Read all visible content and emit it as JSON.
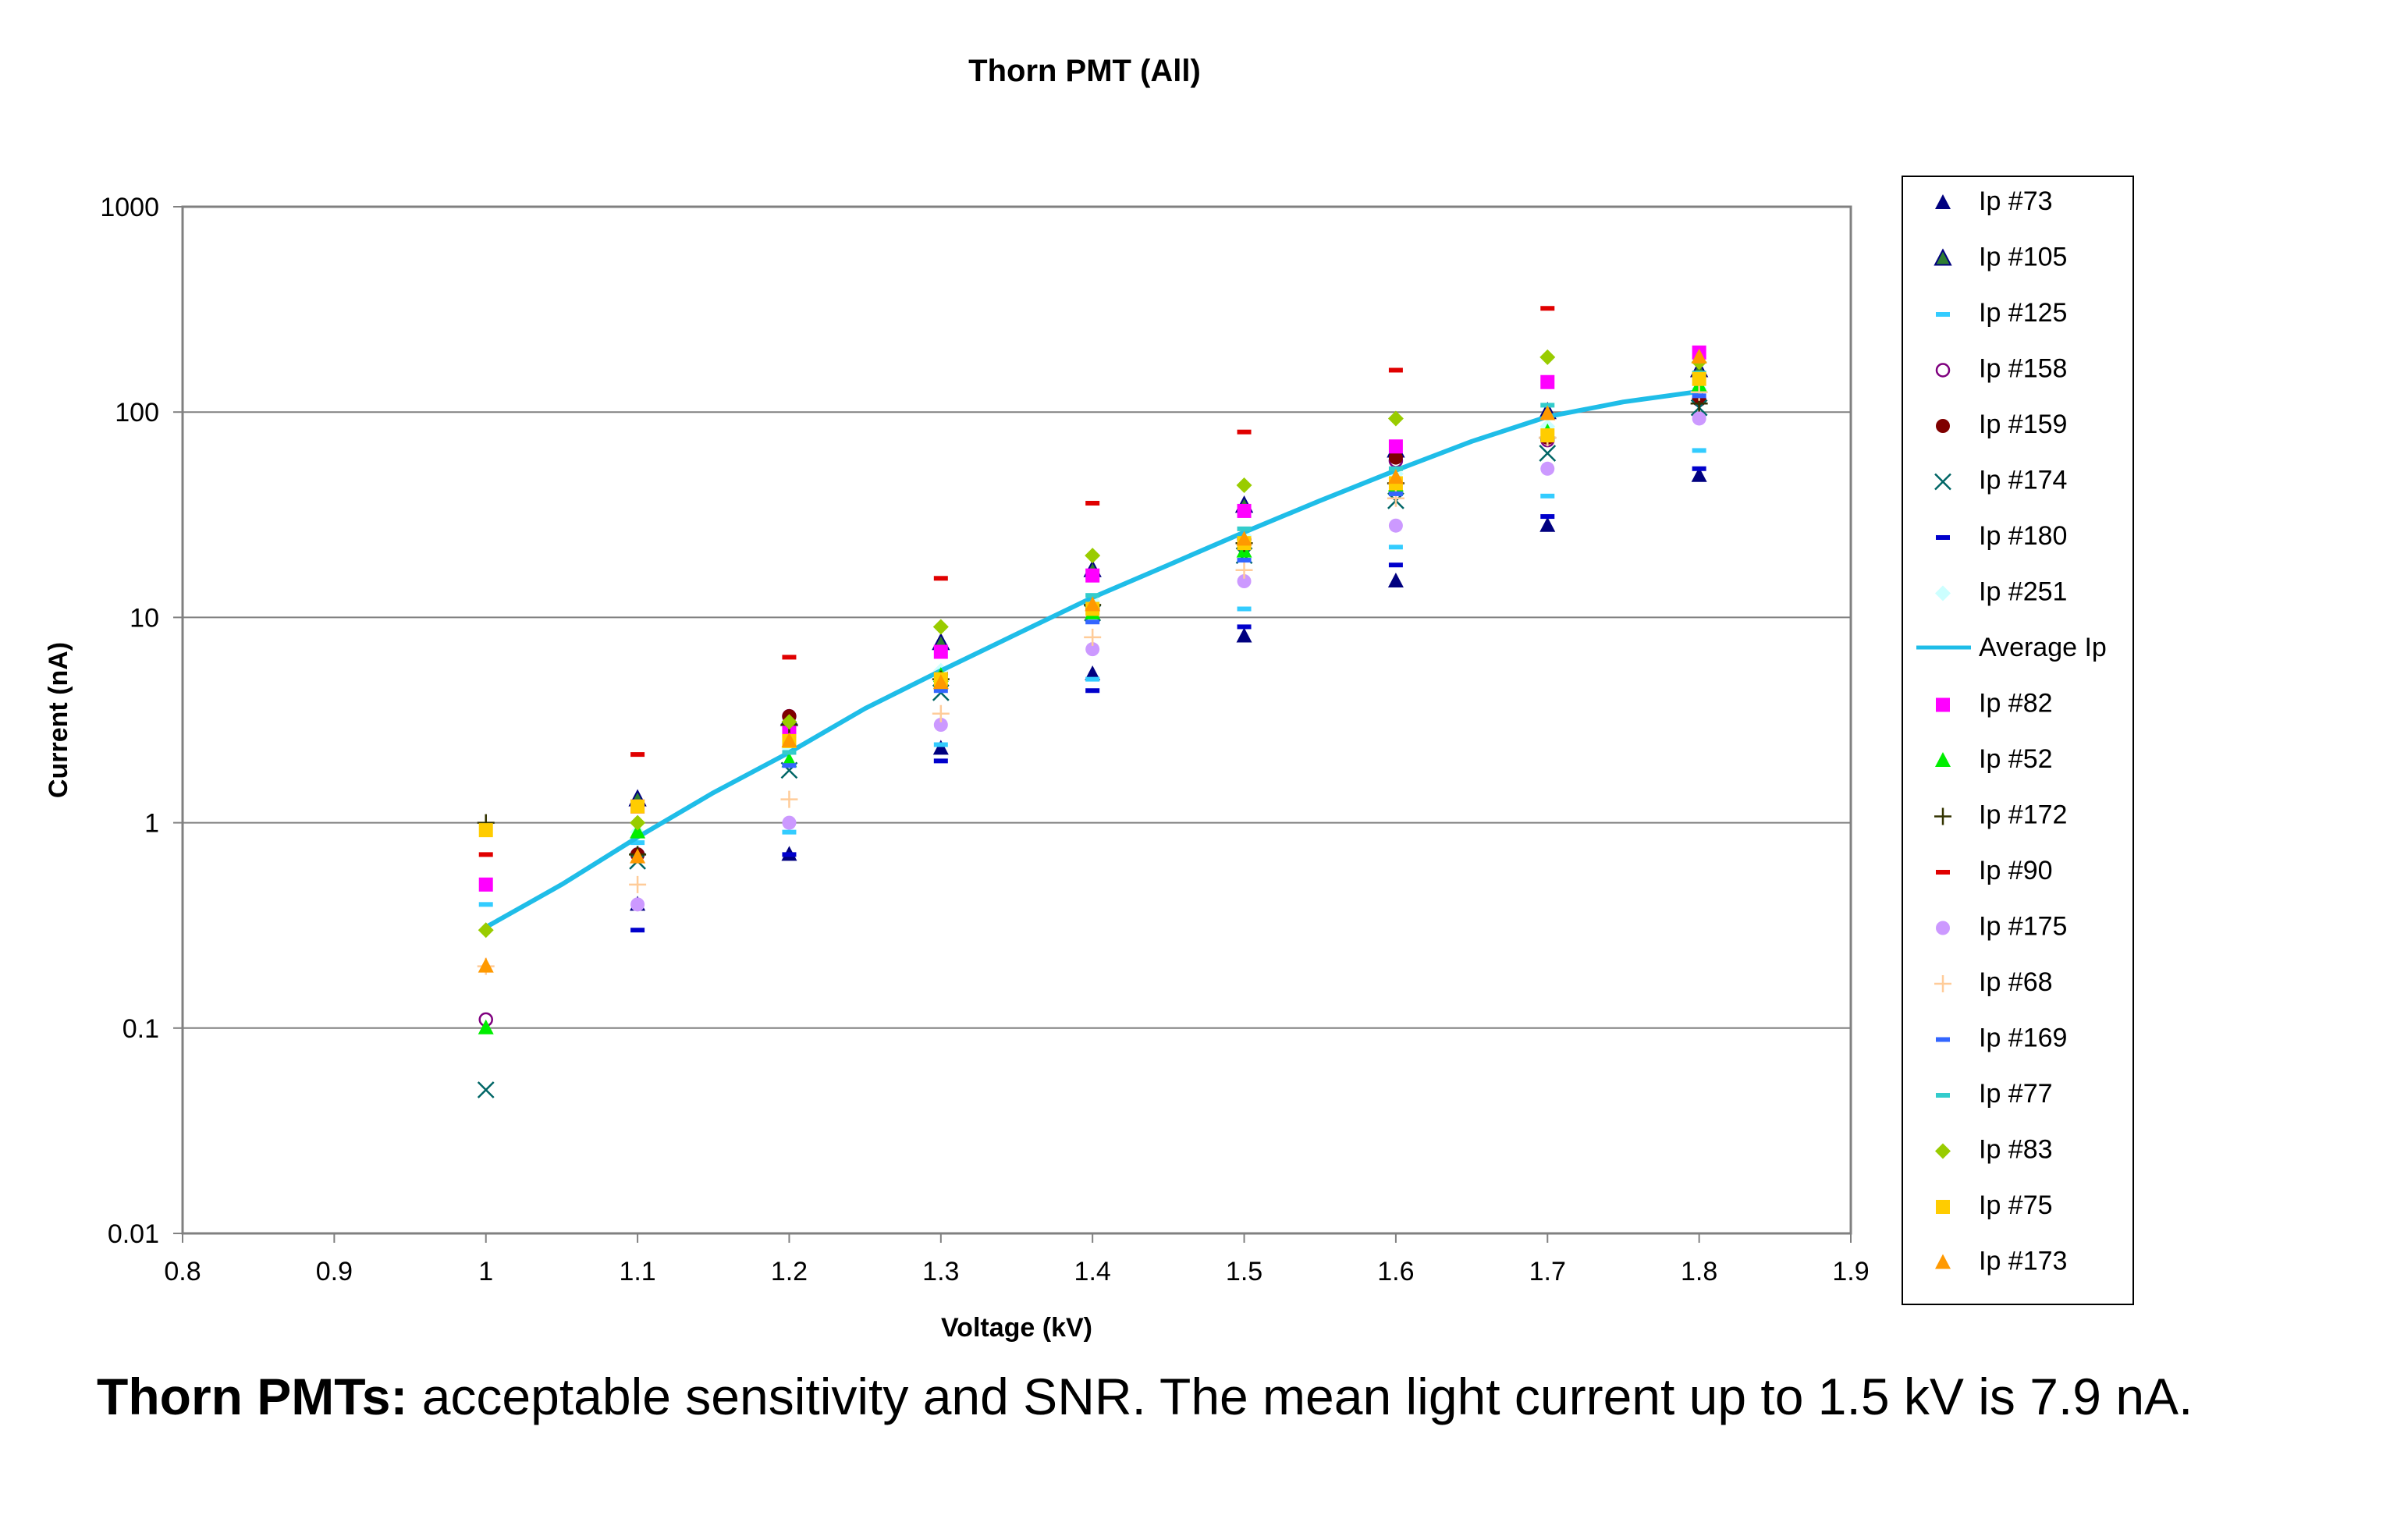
{
  "chart_data": {
    "type": "scatter",
    "title": "Thorn PMT (All)",
    "xlabel": "Voltage (kV)",
    "ylabel": "Current (nA)",
    "xlim": [
      0.8,
      1.9
    ],
    "ylim": [
      0.01,
      1000
    ],
    "y_scale": "log",
    "x_ticks": [
      "0.8",
      "0.9",
      "1",
      "1.1",
      "1.2",
      "1.3",
      "1.4",
      "1.5",
      "1.6",
      "1.7",
      "1.8",
      "1.9"
    ],
    "y_ticks": [
      "0.01",
      "0.1",
      "1",
      "10",
      "100",
      "1000"
    ],
    "grid": "horizontal",
    "legend_position": "right",
    "series": [
      {
        "name": "Ip #73",
        "marker": "triangle",
        "color": "#00007f",
        "x": [
          1.1,
          1.2,
          1.3,
          1.4,
          1.5,
          1.6,
          1.7,
          1.8
        ],
        "y": [
          0.4,
          0.7,
          2.3,
          5.3,
          8.1,
          15,
          28,
          49
        ]
      },
      {
        "name": "Ip #105",
        "marker": "triangle",
        "color": "#2e7d32",
        "stroke": "#00007f",
        "x": [
          1.1,
          1.2,
          1.3,
          1.4,
          1.5,
          1.6,
          1.7,
          1.8
        ],
        "y": [
          1.3,
          3.2,
          7.5,
          17,
          35,
          65,
          100,
          160
        ]
      },
      {
        "name": "Ip #125",
        "marker": "dash",
        "color": "#33ccff",
        "x": [
          1.0,
          1.1,
          1.2,
          1.3,
          1.4,
          1.5,
          1.6,
          1.7,
          1.8
        ],
        "y": [
          0.4,
          0.8,
          0.9,
          2.4,
          5.0,
          11,
          22,
          39,
          65
        ]
      },
      {
        "name": "Ip #158",
        "marker": "circle-open",
        "color": "#7f007f",
        "x": [
          1.0,
          1.1,
          1.2,
          1.3,
          1.4,
          1.5,
          1.6,
          1.7,
          1.8
        ],
        "y": [
          0.11,
          0.7,
          3.3,
          5.3,
          11,
          24,
          58,
          73,
          115
        ]
      },
      {
        "name": "Ip #159",
        "marker": "circle",
        "color": "#7f0000",
        "x": [
          1.1,
          1.2,
          1.3,
          1.4,
          1.5,
          1.6,
          1.7,
          1.8
        ],
        "y": [
          0.7,
          3.3,
          5.3,
          11.5,
          24,
          60,
          75,
          115
        ]
      },
      {
        "name": "Ip #174",
        "marker": "x",
        "color": "#006666",
        "x": [
          1.0,
          1.1,
          1.2,
          1.3,
          1.4,
          1.5,
          1.6,
          1.7,
          1.8
        ],
        "y": [
          0.05,
          0.65,
          1.8,
          4.3,
          10.5,
          20,
          37,
          63,
          105
        ]
      },
      {
        "name": "Ip #180",
        "marker": "dash",
        "color": "#0000cc",
        "x": [
          1.1,
          1.2,
          1.3,
          1.4,
          1.5,
          1.6,
          1.7,
          1.8
        ],
        "y": [
          0.3,
          0.7,
          2.0,
          4.4,
          9.0,
          18,
          31,
          53
        ]
      },
      {
        "name": "Ip #251",
        "marker": "diamond",
        "color": "#ccffff",
        "x": [
          1.1,
          1.2,
          1.3,
          1.4,
          1.5,
          1.6,
          1.7,
          1.8
        ],
        "y": [
          0.9,
          2.3,
          5.5,
          12,
          25,
          50,
          85,
          130
        ]
      },
      {
        "name": "Average Ip",
        "marker": "line",
        "color": "#1fbde8",
        "x": [
          1.0,
          1.05,
          1.1,
          1.15,
          1.2,
          1.25,
          1.3,
          1.35,
          1.4,
          1.45,
          1.5,
          1.55,
          1.6,
          1.65,
          1.7,
          1.75,
          1.8
        ],
        "y": [
          0.31,
          0.5,
          0.85,
          1.4,
          2.2,
          3.6,
          5.5,
          8.3,
          12.5,
          18,
          26,
          37,
          52,
          72,
          95,
          112,
          126
        ]
      },
      {
        "name": "Ip #82",
        "marker": "square",
        "color": "#ff00ff",
        "x": [
          1.0,
          1.1,
          1.2,
          1.3,
          1.4,
          1.5,
          1.6,
          1.7,
          1.8
        ],
        "y": [
          0.5,
          1.2,
          2.8,
          6.8,
          16,
          33,
          68,
          140,
          195
        ]
      },
      {
        "name": "Ip #52",
        "marker": "triangle",
        "color": "#00ee00",
        "x": [
          1.0,
          1.1,
          1.2,
          1.3,
          1.4,
          1.5,
          1.6,
          1.7,
          1.8
        ],
        "y": [
          0.1,
          0.9,
          2.0,
          5.2,
          10.5,
          21,
          44,
          80,
          135
        ]
      },
      {
        "name": "Ip #172",
        "marker": "plus",
        "color": "#333300",
        "x": [
          1.0,
          1.1,
          1.2,
          1.3,
          1.4,
          1.5,
          1.6,
          1.7,
          1.8
        ],
        "y": [
          1.0,
          0.7,
          3.0,
          5.0,
          11.5,
          23,
          45,
          75,
          110
        ]
      },
      {
        "name": "Ip #90",
        "marker": "dash",
        "color": "#e00000",
        "x": [
          1.0,
          1.1,
          1.2,
          1.3,
          1.4,
          1.5,
          1.6,
          1.7
        ],
        "y": [
          0.7,
          2.15,
          6.4,
          15.5,
          36,
          80,
          160,
          320
        ]
      },
      {
        "name": "Ip #175",
        "marker": "circle",
        "color": "#cc99ff",
        "x": [
          1.1,
          1.2,
          1.3,
          1.4,
          1.5,
          1.6,
          1.7,
          1.8
        ],
        "y": [
          0.4,
          1.0,
          3.0,
          7.0,
          15,
          28,
          53,
          93
        ]
      },
      {
        "name": "Ip #68",
        "marker": "plus",
        "color": "#ffcc99",
        "x": [
          1.0,
          1.1,
          1.2,
          1.3,
          1.4,
          1.5,
          1.6,
          1.7,
          1.8
        ],
        "y": [
          0.2,
          0.5,
          1.3,
          3.4,
          8.0,
          17,
          38,
          75,
          125
        ]
      },
      {
        "name": "Ip #169",
        "marker": "dash",
        "color": "#3366ff",
        "x": [
          1.2,
          1.3,
          1.4,
          1.5,
          1.6,
          1.7,
          1.8
        ],
        "y": [
          1.9,
          4.4,
          9.5,
          19,
          40,
          74,
          120
        ]
      },
      {
        "name": "Ip #77",
        "marker": "dash",
        "color": "#33cccc",
        "x": [
          1.2,
          1.3,
          1.4,
          1.5,
          1.6,
          1.7,
          1.8
        ],
        "y": [
          2.2,
          5.2,
          12.8,
          27,
          53,
          108,
          155
        ]
      },
      {
        "name": "Ip  #83",
        "marker": "diamond",
        "color": "#99cc00",
        "x": [
          1.0,
          1.1,
          1.2,
          1.3,
          1.4,
          1.5,
          1.6,
          1.7,
          1.8
        ],
        "y": [
          0.3,
          1.0,
          3.1,
          9.0,
          20,
          44,
          93,
          185,
          175
        ]
      },
      {
        "name": "Ip #75",
        "marker": "square",
        "color": "#ffcc00",
        "x": [
          1.0,
          1.1,
          1.2,
          1.3,
          1.4,
          1.5,
          1.6,
          1.7,
          1.8
        ],
        "y": [
          0.92,
          1.2,
          2.5,
          5.0,
          11,
          23,
          45,
          77,
          145
        ]
      },
      {
        "name": "Ip #173",
        "marker": "triangle",
        "color": "#ff9900",
        "x": [
          1.0,
          1.1,
          1.2,
          1.3,
          1.4,
          1.5,
          1.6,
          1.7,
          1.8
        ],
        "y": [
          0.2,
          0.68,
          2.5,
          4.8,
          11.5,
          24,
          48,
          98,
          185
        ]
      }
    ]
  },
  "caption": {
    "bold": "Thorn PMTs:",
    "text": " acceptable sensitivity and SNR. The mean light current up to 1.5 kV is 7.9 nA."
  }
}
